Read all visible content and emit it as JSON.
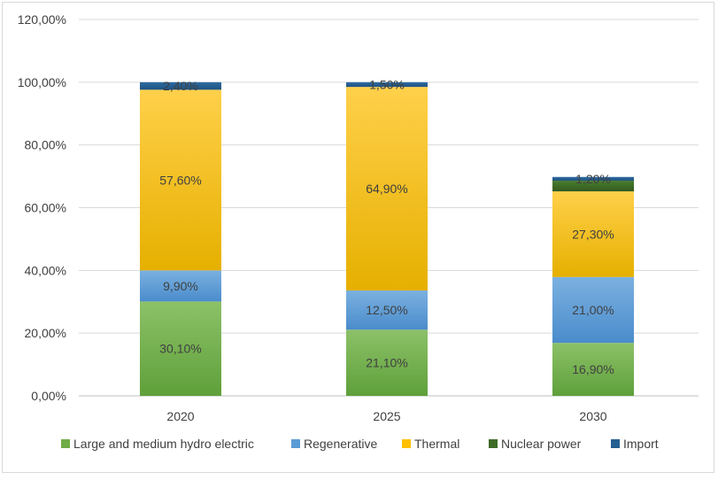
{
  "chart_data": {
    "type": "bar",
    "stacked": true,
    "categories": [
      "2020",
      "2025",
      "2030"
    ],
    "series": [
      {
        "name": "Large and medium hydro electric",
        "values": [
          30.1,
          21.1,
          16.9
        ],
        "labels": [
          "30,10%",
          "21,10%",
          "16,90%"
        ],
        "color": "#70ad47"
      },
      {
        "name": "Regenerative",
        "values": [
          9.9,
          12.5,
          21.0
        ],
        "labels": [
          "9,90%",
          "12,50%",
          "21,00%"
        ],
        "color": "#5b9bd5"
      },
      {
        "name": "Thermal",
        "values": [
          57.6,
          64.9,
          27.3
        ],
        "labels": [
          "57,60%",
          "64,90%",
          "27,30%"
        ],
        "color": "#ffc000"
      },
      {
        "name": "Nuclear power",
        "values": [
          0.0,
          0.0,
          3.4
        ],
        "labels": [
          "",
          "",
          ""
        ],
        "color": "#3d6b26"
      },
      {
        "name": "Import",
        "values": [
          2.4,
          1.5,
          1.2
        ],
        "labels": [
          "2,40%",
          "1,50%",
          "1,20%"
        ],
        "color": "#255e91"
      }
    ],
    "ylim": [
      0,
      120
    ],
    "yticks": [
      "0,00%",
      "20,00%",
      "40,00%",
      "60,00%",
      "80,00%",
      "100,00%",
      "120,00%"
    ],
    "ytick_values": [
      0,
      20,
      40,
      60,
      80,
      100,
      120
    ],
    "grid": true,
    "legend_position": "bottom",
    "title": "",
    "xlabel": "",
    "ylabel": ""
  }
}
